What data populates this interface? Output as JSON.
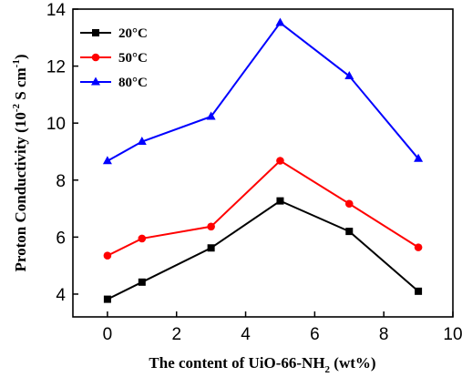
{
  "chart_data": {
    "type": "line",
    "x": [
      0,
      1,
      3,
      5,
      7,
      9
    ],
    "xlim": [
      -1,
      10
    ],
    "ylim": [
      3.2,
      14
    ],
    "x_ticks": [
      0,
      2,
      4,
      6,
      8,
      10
    ],
    "y_ticks": [
      4,
      6,
      8,
      10,
      12,
      14
    ],
    "x_tick_labels": [
      "0",
      "2",
      "4",
      "6",
      "8",
      "10"
    ],
    "y_tick_labels": [
      "4",
      "6",
      "8",
      "10",
      "12",
      "14"
    ],
    "xlabel": {
      "main": "The content of UiO-66-NH",
      "sub": "2",
      "tail": " (wt%)"
    },
    "ylabel": {
      "main": "Proton Conductivity (10",
      "sup1": "-2",
      "mid": " S cm",
      "sup2": "-1",
      "tail": ")"
    },
    "grid": false,
    "legend_position": "top-left",
    "series": [
      {
        "name": "20°C",
        "color": "#000000",
        "marker": "square",
        "values": [
          3.82,
          4.42,
          5.62,
          7.27,
          6.2,
          4.1
        ]
      },
      {
        "name": "50°C",
        "color": "#ff0000",
        "marker": "circle",
        "values": [
          5.35,
          5.95,
          6.37,
          8.68,
          7.17,
          5.64
        ]
      },
      {
        "name": "80°C",
        "color": "#0000ff",
        "marker": "triangle",
        "values": [
          8.67,
          9.35,
          10.23,
          13.52,
          11.65,
          8.75
        ]
      }
    ]
  }
}
